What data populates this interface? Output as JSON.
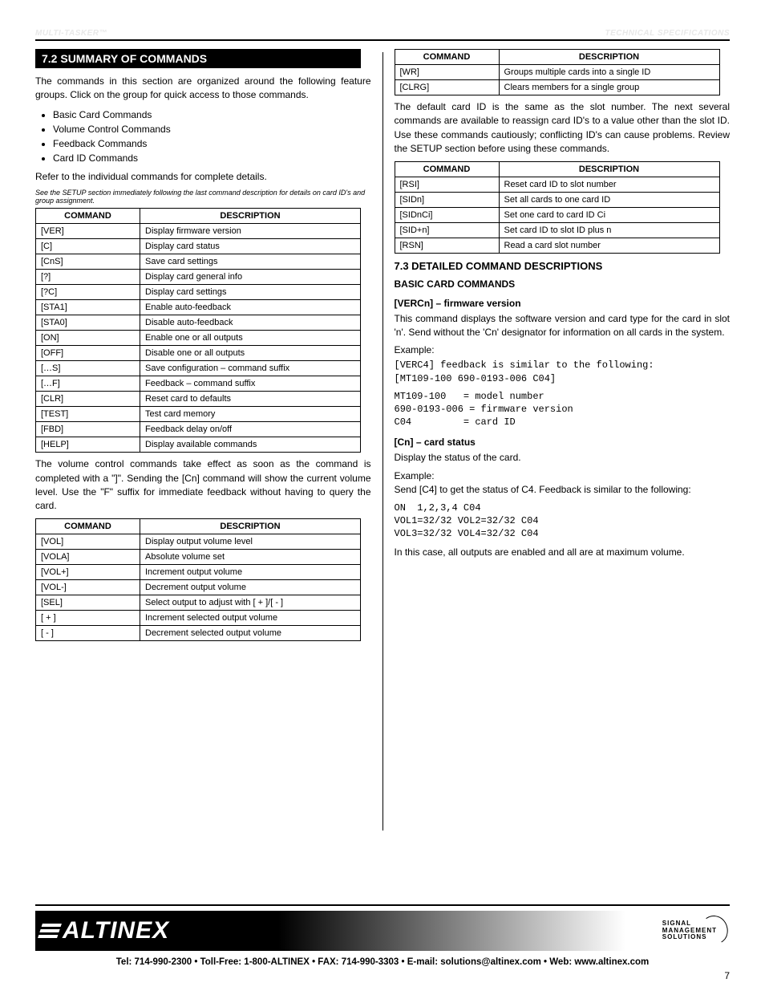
{
  "header": {
    "left": "MULTI-TASKER™",
    "right": "TECHNICAL SPECIFICATIONS"
  },
  "section_banner": "7.2 SUMMARY OF COMMANDS",
  "intro": {
    "p1": "The commands in this section are organized around the following feature groups. Click on the group for quick access to those commands.",
    "bullets": [
      "Basic Card Commands",
      "Volume Control Commands",
      "Feedback Commands",
      "Card ID Commands"
    ],
    "p2": "Refer to the individual commands for complete details.",
    "note": "See the SETUP section immediately following the last command description for details on card ID's and group assignment."
  },
  "tbl_basic": {
    "title_left": "COMMAND",
    "title_right": "DESCRIPTION",
    "rows": [
      [
        "[VER]",
        "Display firmware version"
      ],
      [
        "[C]",
        "Display card status"
      ],
      [
        "[CnS]",
        "Save card settings"
      ],
      [
        "[?]",
        "Display card general info"
      ],
      [
        "[?C]",
        "Display card settings"
      ],
      [
        "[STA1]",
        "Enable auto-feedback"
      ],
      [
        "[STA0]",
        "Disable auto-feedback"
      ],
      [
        "[ON]",
        "Enable one or all outputs"
      ],
      [
        "[OFF]",
        "Disable one or all outputs"
      ],
      [
        "[…S]",
        "Save configuration – command suffix"
      ],
      [
        "[…F]",
        "Feedback – command suffix"
      ],
      [
        "[CLR]",
        "Reset card to defaults"
      ],
      [
        "[TEST]",
        "Test card memory"
      ],
      [
        "[FBD]",
        "Feedback delay on/off"
      ],
      [
        "[HELP]",
        "Display available commands"
      ]
    ]
  },
  "vol_intro": "The volume control commands take effect as soon as the command is completed with a \"]\". Sending the [Cn] command will show the current volume level. Use the \"F\" suffix for immediate feedback without having to query the card.",
  "tbl_vol": {
    "title_left": "COMMAND",
    "title_right": "DESCRIPTION",
    "rows": [
      [
        "[VOL]",
        "Display output volume level"
      ],
      [
        "[VOLA]",
        "Absolute volume set"
      ],
      [
        "[VOL+]",
        "Increment output volume"
      ],
      [
        "[VOL-]",
        "Decrement output volume"
      ],
      [
        "[SEL]",
        "Select output to adjust with [ + ]/[ - ]"
      ],
      [
        "[ + ]",
        "Increment selected output volume"
      ],
      [
        "[ - ]",
        "Decrement selected output volume"
      ]
    ]
  },
  "tbl_fdbk": {
    "title_left": "COMMAND",
    "title_right": "DESCRIPTION",
    "rows": [
      [
        "[WR]",
        "Groups multiple cards into a single ID"
      ],
      [
        "[CLRG]",
        "Clears members for a single group"
      ]
    ]
  },
  "id_intro": "The default card ID is the same as the slot number. The next several commands are available to reassign card ID's to a value other than the slot ID. Use these commands cautiously; conflicting ID's can cause problems. Review the SETUP section before using these commands.",
  "tbl_id": {
    "title_left": "COMMAND",
    "title_right": "DESCRIPTION",
    "rows": [
      [
        "[RSI]",
        "Reset card ID to slot number"
      ],
      [
        "[SIDn]",
        "Set all cards to one card ID"
      ],
      [
        "[SIDnCi]",
        "Set one card to card ID Ci"
      ],
      [
        "[SID+n]",
        "Set card ID to slot ID plus n"
      ],
      [
        "[RSN]",
        "Read a card slot number"
      ]
    ]
  },
  "cmd_detail": {
    "heading": "7.3 DETAILED COMMAND DESCRIPTIONS",
    "basic_title": "BASIC CARD COMMANDS",
    "ver_title": "[VERCn] – firmware version",
    "ver_body": "This command displays the software version and card type for the card in slot 'n'. Send without the 'Cn' designator for information on all cards in the system.",
    "ver_example_lbl": "Example:",
    "ver_example": "[VERC4] feedback is similar to the following:\n[MT109-100 690-0193-006 C04]",
    "ver_break": "MT109-100   = model number\n690-0193-006 = firmware version\nC04         = card ID",
    "cn_title": "[Cn] – card status",
    "cn_body": "Display the status of the card.",
    "cn_example_lbl": "Example:",
    "cn_example": "Send [C4] to get the status of C4. Feedback is similar to the following:",
    "cn_block": "ON  1,2,3,4 C04\nVOL1=32/32 VOL2=32/32 C04\nVOL3=32/32 VOL4=32/32 C04",
    "cn_body2": "In this case, all outputs are enabled and all are at maximum volume."
  },
  "footer": {
    "brand": "ALTINEX",
    "sms": [
      "SIGNAL",
      "MANAGEMENT",
      "SOLUTIONS"
    ],
    "contact": "Tel: 714-990-2300 • Toll-Free: 1-800-ALTINEX • FAX: 714-990-3303 • E-mail: solutions@altinex.com • Web: www.altinex.com",
    "page": "7"
  }
}
